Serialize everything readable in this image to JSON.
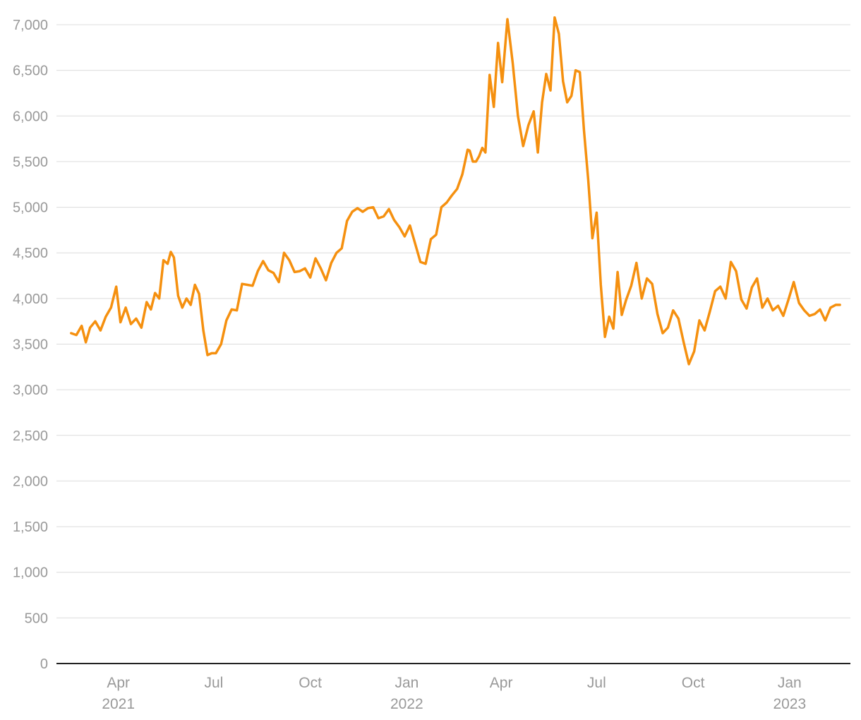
{
  "chart_data": {
    "type": "line",
    "title": "",
    "xlabel": "",
    "ylabel": "",
    "ylim": [
      0,
      7000
    ],
    "yticks": [
      0,
      500,
      1000,
      1500,
      2000,
      2500,
      3000,
      3500,
      4000,
      4500,
      5000,
      5500,
      6000,
      6500,
      7000
    ],
    "ytick_labels": [
      "0",
      "500",
      "1,000",
      "1,500",
      "2,000",
      "2,500",
      "3,000",
      "3,500",
      "4,000",
      "4,500",
      "5,000",
      "5,500",
      "6,000",
      "6,500",
      "7,000"
    ],
    "xlim": [
      "2021-02-01",
      "2023-02-28"
    ],
    "xticks": [
      {
        "date": "2021-04-01",
        "label": "Apr",
        "year": "2021"
      },
      {
        "date": "2021-07-01",
        "label": "Jul",
        "year": ""
      },
      {
        "date": "2021-10-01",
        "label": "Oct",
        "year": ""
      },
      {
        "date": "2022-01-01",
        "label": "Jan",
        "year": "2022"
      },
      {
        "date": "2022-04-01",
        "label": "Apr",
        "year": ""
      },
      {
        "date": "2022-07-01",
        "label": "Jul",
        "year": ""
      },
      {
        "date": "2022-10-01",
        "label": "Oct",
        "year": ""
      },
      {
        "date": "2023-01-01",
        "label": "Jan",
        "year": "2023"
      }
    ],
    "grid": true,
    "line_color": "#f5900f",
    "series": [
      {
        "x": [
          "2021-02-15",
          "2021-02-20",
          "2021-02-25",
          "2021-03-01",
          "2021-03-05",
          "2021-03-10",
          "2021-03-15",
          "2021-03-20",
          "2021-03-25",
          "2021-03-30",
          "2021-04-03",
          "2021-04-08",
          "2021-04-13",
          "2021-04-18",
          "2021-04-23",
          "2021-04-28",
          "2021-05-02",
          "2021-05-06",
          "2021-05-10",
          "2021-05-14",
          "2021-05-18",
          "2021-05-21",
          "2021-05-24",
          "2021-05-28",
          "2021-06-01",
          "2021-06-05",
          "2021-06-09",
          "2021-06-13",
          "2021-06-17",
          "2021-06-21",
          "2021-06-25",
          "2021-06-29",
          "2021-07-03",
          "2021-07-08",
          "2021-07-13",
          "2021-07-18",
          "2021-07-23",
          "2021-07-28",
          "2021-08-02",
          "2021-08-07",
          "2021-08-12",
          "2021-08-17",
          "2021-08-22",
          "2021-08-27",
          "2021-09-01",
          "2021-09-06",
          "2021-09-11",
          "2021-09-16",
          "2021-09-21",
          "2021-09-26",
          "2021-10-01",
          "2021-10-06",
          "2021-10-11",
          "2021-10-16",
          "2021-10-21",
          "2021-10-26",
          "2021-10-31",
          "2021-11-05",
          "2021-11-10",
          "2021-11-15",
          "2021-11-20",
          "2021-11-25",
          "2021-11-30",
          "2021-12-05",
          "2021-12-10",
          "2021-12-15",
          "2021-12-20",
          "2021-12-25",
          "2021-12-30",
          "2022-01-04",
          "2022-01-09",
          "2022-01-14",
          "2022-01-19",
          "2022-01-24",
          "2022-01-29",
          "2022-02-03",
          "2022-02-08",
          "2022-02-13",
          "2022-02-18",
          "2022-02-23",
          "2022-02-28",
          "2022-03-02",
          "2022-03-05",
          "2022-03-08",
          "2022-03-11",
          "2022-03-14",
          "2022-03-17",
          "2022-03-21",
          "2022-03-25",
          "2022-03-29",
          "2022-04-02",
          "2022-04-07",
          "2022-04-12",
          "2022-04-17",
          "2022-04-22",
          "2022-04-27",
          "2022-05-02",
          "2022-05-06",
          "2022-05-10",
          "2022-05-14",
          "2022-05-18",
          "2022-05-22",
          "2022-05-26",
          "2022-05-30",
          "2022-06-03",
          "2022-06-07",
          "2022-06-11",
          "2022-06-15",
          "2022-06-19",
          "2022-06-23",
          "2022-06-27",
          "2022-07-01",
          "2022-07-05",
          "2022-07-09",
          "2022-07-13",
          "2022-07-17",
          "2022-07-21",
          "2022-07-25",
          "2022-07-29",
          "2022-08-03",
          "2022-08-08",
          "2022-08-13",
          "2022-08-18",
          "2022-08-23",
          "2022-08-28",
          "2022-09-02",
          "2022-09-07",
          "2022-09-12",
          "2022-09-17",
          "2022-09-22",
          "2022-09-27",
          "2022-10-02",
          "2022-10-07",
          "2022-10-12",
          "2022-10-17",
          "2022-10-22",
          "2022-10-27",
          "2022-11-01",
          "2022-11-06",
          "2022-11-11",
          "2022-11-16",
          "2022-11-21",
          "2022-11-26",
          "2022-12-01",
          "2022-12-06",
          "2022-12-11",
          "2022-12-16",
          "2022-12-21",
          "2022-12-26",
          "2022-12-31",
          "2023-01-05",
          "2023-01-10",
          "2023-01-15",
          "2023-01-20",
          "2023-01-25",
          "2023-01-30",
          "2023-02-04",
          "2023-02-09",
          "2023-02-14",
          "2023-02-18"
        ],
        "y": [
          3620,
          3600,
          3700,
          3520,
          3680,
          3750,
          3650,
          3800,
          3900,
          4130,
          3740,
          3900,
          3720,
          3780,
          3680,
          3960,
          3880,
          4060,
          4000,
          4420,
          4380,
          4510,
          4450,
          4030,
          3900,
          4000,
          3930,
          4150,
          4050,
          3650,
          3380,
          3400,
          3400,
          3500,
          3760,
          3880,
          3870,
          4160,
          4150,
          4140,
          4300,
          4410,
          4310,
          4280,
          4180,
          4500,
          4420,
          4290,
          4300,
          4330,
          4230,
          4440,
          4330,
          4200,
          4390,
          4500,
          4550,
          4850,
          4950,
          4990,
          4950,
          4990,
          5000,
          4880,
          4900,
          4980,
          4860,
          4780,
          4680,
          4800,
          4600,
          4400,
          4380,
          4650,
          4700,
          5000,
          5050,
          5130,
          5200,
          5360,
          5630,
          5620,
          5500,
          5500,
          5560,
          5650,
          5600,
          6450,
          6100,
          6800,
          6370,
          7060,
          6580,
          6000,
          5670,
          5900,
          6050,
          5600,
          6150,
          6460,
          6280,
          7080,
          6900,
          6380,
          6150,
          6220,
          6500,
          6480,
          5840,
          5300,
          4660,
          4940,
          4150,
          3580,
          3800,
          3670,
          4290,
          3820,
          3980,
          4140,
          4390,
          4000,
          4220,
          4160,
          3830,
          3620,
          3680,
          3870,
          3780,
          3520,
          3280,
          3420,
          3760,
          3650,
          3860,
          4080,
          4130,
          4000,
          4400,
          4300,
          3990,
          3890,
          4120,
          4220,
          3900,
          4000,
          3870,
          3920,
          3810,
          3990,
          4180,
          3950,
          3870,
          3810,
          3830,
          3880,
          3760,
          3900,
          3930,
          3930
        ]
      }
    ]
  }
}
